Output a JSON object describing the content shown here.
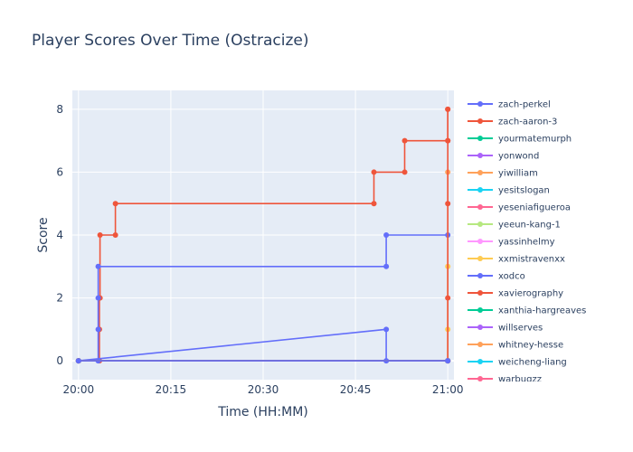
{
  "chart_data": {
    "type": "line",
    "title": "Player Scores Over Time (Ostracize)",
    "xlabel": "Time (HH:MM)",
    "ylabel": "Score",
    "x_ticks": [
      "20:00",
      "20:15",
      "20:30",
      "20:45",
      "21:00"
    ],
    "x_tick_minutes": [
      0,
      15,
      30,
      45,
      60
    ],
    "xlim_minutes": [
      -1,
      61
    ],
    "y_ticks": [
      0,
      2,
      4,
      6,
      8
    ],
    "ylim": [
      -0.6,
      8.6
    ],
    "line_shape": "step",
    "grid": true,
    "legend_placement": "right",
    "series": [
      {
        "name": "zach-perkel",
        "color": "#636efa",
        "points": [
          [
            0,
            0
          ],
          [
            60,
            0
          ]
        ]
      },
      {
        "name": "zach-aaron-3",
        "color": "#ef553b",
        "points": [
          [
            0,
            0
          ],
          [
            60,
            0
          ],
          [
            60,
            2
          ],
          [
            60,
            5
          ],
          [
            60,
            7
          ],
          [
            60,
            8
          ]
        ]
      },
      {
        "name": "yourmatemurph",
        "color": "#00cc96",
        "points": [
          [
            0,
            0
          ],
          [
            60,
            0
          ]
        ]
      },
      {
        "name": "yonwond",
        "color": "#ab63fa",
        "points": [
          [
            0,
            0
          ],
          [
            60,
            0
          ]
        ]
      },
      {
        "name": "yiwilliam",
        "color": "#ffa15a",
        "points": [
          [
            0,
            0
          ],
          [
            60,
            0
          ],
          [
            60,
            6
          ]
        ]
      },
      {
        "name": "yesitslogan",
        "color": "#19d3f3",
        "points": [
          [
            0,
            0
          ],
          [
            60,
            0
          ]
        ]
      },
      {
        "name": "yeseniafigueroa",
        "color": "#ff6692",
        "points": [
          [
            0,
            0
          ],
          [
            60,
            0
          ]
        ]
      },
      {
        "name": "yeeun-kang-1",
        "color": "#b6e880",
        "points": [
          [
            0,
            0
          ],
          [
            60,
            0
          ]
        ]
      },
      {
        "name": "yassinhelmy",
        "color": "#ff97ff",
        "points": [
          [
            0,
            0
          ],
          [
            60,
            0
          ]
        ]
      },
      {
        "name": "xxmistravenxx",
        "color": "#fecb52",
        "points": [
          [
            0,
            0
          ],
          [
            60,
            0
          ],
          [
            60,
            1
          ],
          [
            60,
            3
          ]
        ]
      },
      {
        "name": "xodco",
        "color": "#636efa",
        "points": [
          [
            0,
            0
          ],
          [
            50,
            0
          ],
          [
            50,
            1
          ],
          [
            0,
            0
          ],
          [
            3.2,
            0
          ],
          [
            3.2,
            1
          ],
          [
            3.2,
            2
          ],
          [
            3.2,
            3
          ],
          [
            50,
            3
          ],
          [
            50,
            4
          ],
          [
            60,
            4
          ]
        ]
      },
      {
        "name": "xavierography",
        "color": "#ef553b",
        "points": [
          [
            0,
            0
          ],
          [
            3.4,
            0
          ],
          [
            3.4,
            1
          ],
          [
            3.4,
            2
          ],
          [
            3.5,
            2
          ],
          [
            3.5,
            4
          ],
          [
            6,
            4
          ],
          [
            6,
            5
          ],
          [
            48,
            5
          ],
          [
            48,
            6
          ],
          [
            53,
            6
          ],
          [
            53,
            7
          ],
          [
            60,
            7
          ],
          [
            60,
            8
          ]
        ]
      },
      {
        "name": "xanthia-hargreaves",
        "color": "#00cc96",
        "points": [
          [
            0,
            0
          ],
          [
            60,
            0
          ]
        ]
      },
      {
        "name": "willserves",
        "color": "#ab63fa",
        "points": [
          [
            0,
            0
          ],
          [
            60,
            0
          ]
        ]
      },
      {
        "name": "whitney-hesse",
        "color": "#ffa15a",
        "points": [
          [
            0,
            0
          ],
          [
            60,
            0
          ]
        ]
      },
      {
        "name": "weicheng-liang",
        "color": "#19d3f3",
        "points": [
          [
            0,
            0
          ],
          [
            60,
            0
          ]
        ]
      },
      {
        "name": "warbugzz",
        "color": "#ff6692",
        "points": [
          [
            0,
            0
          ],
          [
            60,
            0
          ]
        ]
      }
    ]
  }
}
